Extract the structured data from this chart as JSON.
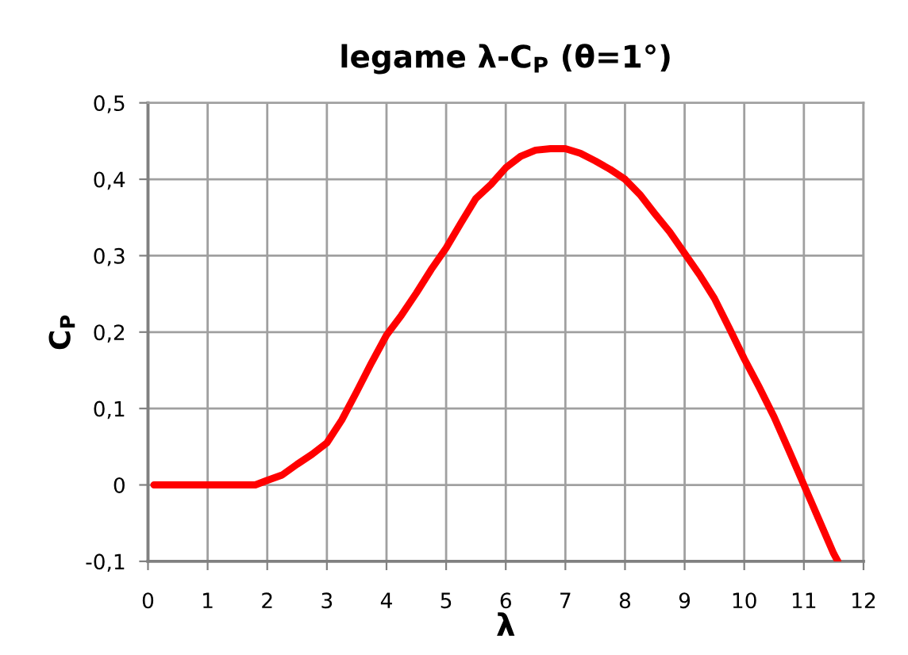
{
  "chart_data": {
    "type": "line",
    "title": "legame λ-C$_{P}$ (θ=1°)",
    "xlabel": "λ",
    "ylabel": "C$_{P}$",
    "series": [
      {
        "color": "#ff0000",
        "x": [
          0.1,
          0.5,
          1,
          1.5,
          1.8,
          2,
          2.25,
          2.5,
          2.75,
          3,
          3.25,
          3.5,
          3.75,
          4,
          4.25,
          4.5,
          4.75,
          5,
          5.25,
          5.5,
          5.75,
          6,
          6.25,
          6.5,
          6.75,
          7,
          7.25,
          7.5,
          7.75,
          8,
          8.25,
          8.5,
          8.75,
          9,
          9.25,
          9.5,
          9.75,
          10,
          10.25,
          10.5,
          10.75,
          11,
          11.25,
          11.5,
          11.57
        ],
        "values": [
          0,
          0,
          0,
          0,
          0,
          0.006,
          0.013,
          0.027,
          0.04,
          0.055,
          0.085,
          0.122,
          0.16,
          0.196,
          0.222,
          0.251,
          0.282,
          0.31,
          0.343,
          0.375,
          0.393,
          0.415,
          0.43,
          0.438,
          0.44,
          0.44,
          0.434,
          0.424,
          0.413,
          0.4,
          0.38,
          0.355,
          0.331,
          0.303,
          0.275,
          0.244,
          0.205,
          0.165,
          0.128,
          0.089,
          0.045,
          0.0,
          -0.045,
          -0.09,
          -0.1
        ]
      }
    ],
    "xlim": [
      0,
      12
    ],
    "xticks": [
      0,
      1,
      2,
      3,
      4,
      5,
      6,
      7,
      8,
      9,
      10,
      11,
      12
    ],
    "ylim": [
      -0.1,
      0.5
    ],
    "yticks": [
      {
        "value": -0.1,
        "label": "-0,1"
      },
      0,
      {
        "value": 0.1,
        "label": "0,1"
      },
      {
        "value": 0.2,
        "label": "0,2"
      },
      {
        "value": 0.3,
        "label": "0,3"
      },
      {
        "value": 0.4,
        "label": "0,4"
      },
      {
        "value": 0.5,
        "label": "0,5"
      }
    ],
    "grid": true,
    "marker": "none",
    "line_style": "solid"
  }
}
